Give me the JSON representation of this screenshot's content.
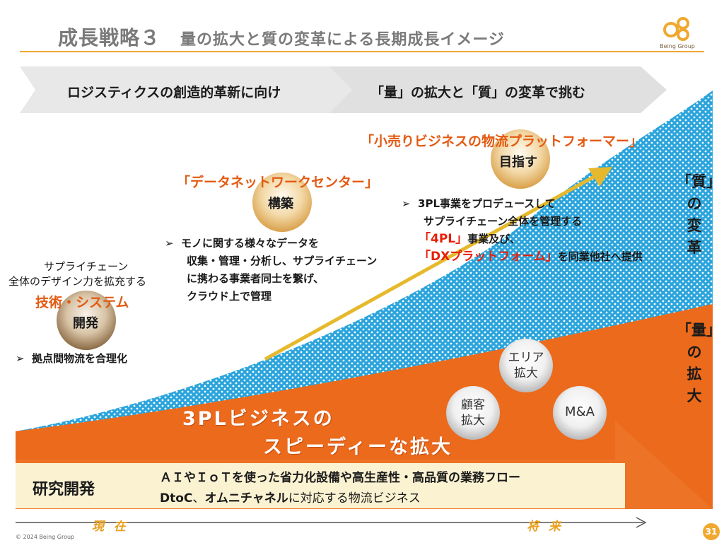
{
  "header": {
    "title": "成長戦略３",
    "subtitle": "量の拡大と質の変革による長期成長イメージ"
  },
  "logo": {
    "text": "Being Group",
    "icon": "being-group-logo-icon",
    "color": "#f0a830"
  },
  "banner": {
    "left": "ロジスティクスの創造的革新に向け",
    "right": "「量」の拡大と「質」の変革で挑む"
  },
  "stage1": {
    "lead_line1": "サプライチェーン",
    "lead_line2": "全体のデザイン力を拡充する",
    "heading": "技術・システム",
    "circle_label": "開発",
    "bullet": "拠点間物流を合理化"
  },
  "stage2": {
    "heading": "「データネットワークセンター」",
    "circle_label": "構築",
    "bullets": [
      "モノに関する様々なデータを",
      "収集・管理・分析し、サプライチェーン",
      "に携わる事業者同士を繋げ、",
      "クラウド上で管理"
    ]
  },
  "stage3": {
    "heading": "「小売りビジネスの物流プラットフォーマー」",
    "circle_label": "目指す",
    "line1": "3PL事業をプロデュースして",
    "line2": "サプライチェーン全体を管理する",
    "highlight1": "「4PL」",
    "line3_rest": "事業及び、",
    "highlight2": "「DXプラットフォーム」",
    "line4_rest": "を同業他社へ提供"
  },
  "quality_label": [
    "「質」",
    "の",
    "変",
    "革"
  ],
  "quantity_label": [
    "「量」",
    "の",
    "拡",
    "大"
  ],
  "bubbles": {
    "area": [
      "エリア",
      "拡大"
    ],
    "customer": [
      "顧客",
      "拡大"
    ],
    "ma": "M&A"
  },
  "growth": {
    "line1": "3PLビジネスの",
    "line2": "スピーディーな拡大"
  },
  "rnd": {
    "label": "研究開発",
    "line1": "ＡＩやＩｏＴを使った省力化設備や高生産性・高品質の業務フロー",
    "line2_bold": "DtoC",
    "line2_mid": "、",
    "line2_bold2": "オムニチャネル",
    "line2_rest": "に対応する物流ビジネス"
  },
  "timeline": {
    "start": "現在",
    "end": "将来"
  },
  "footer": {
    "copyright": "© 2024 Being Group",
    "page": "31"
  },
  "colors": {
    "orange": "#ec6a1c",
    "blue": "#2aa4dc",
    "gold": "#e6b92c",
    "red_text": "#e8200a",
    "banner_gray": "#e8e8e8"
  }
}
